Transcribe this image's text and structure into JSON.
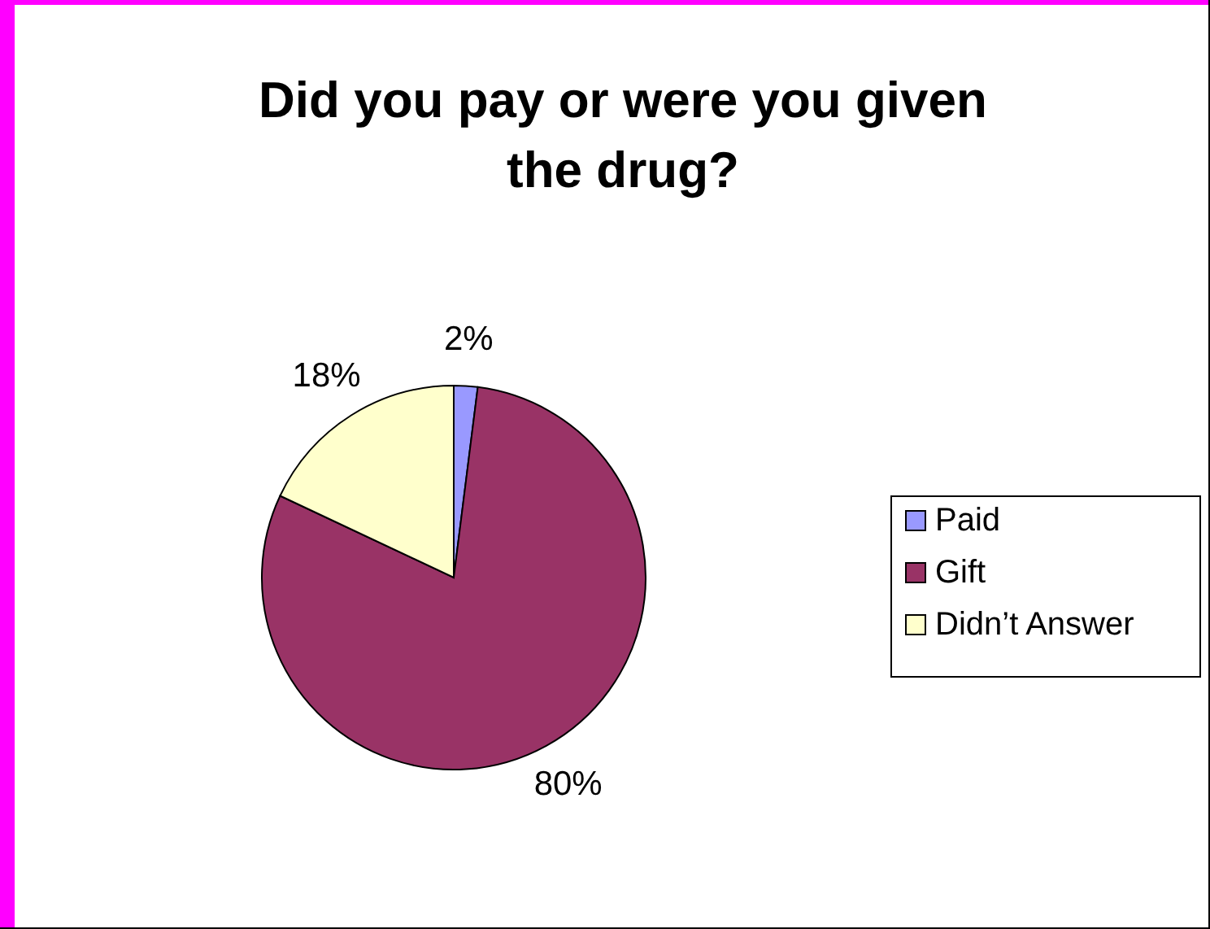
{
  "chart_data": {
    "type": "pie",
    "title": "Did you pay or were you given the drug?",
    "categories": [
      "Paid",
      "Gift",
      "Didn’t Answer"
    ],
    "values": [
      2,
      80,
      18
    ],
    "colors": [
      "#9999ff",
      "#993366",
      "#ffffcc"
    ],
    "value_labels": [
      "2%",
      "80%",
      "18%"
    ],
    "legend": "right"
  }
}
